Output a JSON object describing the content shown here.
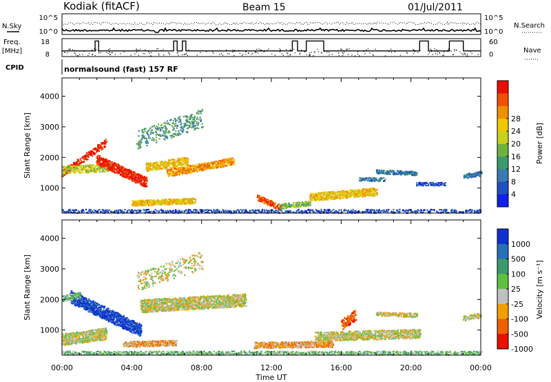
{
  "header": {
    "station": "Kodiak (fitACF)",
    "beam": "Beam 15",
    "date": "01/Jul/2011"
  },
  "left_labels": {
    "nsky": "N.Sky",
    "freq": "Freq.",
    "mhz": "[MHz]",
    "cpid": "CPID"
  },
  "right_labels": {
    "nsearch": "N.Search",
    "nave": "Nave"
  },
  "cpid_text": "normalsound (fast) 157 RF",
  "chart_data": [
    {
      "type": "line",
      "name": "noise",
      "left_ticks": [
        "10^5",
        "10^0"
      ],
      "right_ticks": [
        "10^5",
        "10^0"
      ],
      "series": [
        {
          "name": "N.Sky"
        },
        {
          "name": "N.Search"
        }
      ]
    },
    {
      "type": "line",
      "name": "freq-nave",
      "left_ticks": [
        "18",
        "8"
      ],
      "right_ticks": [
        "60",
        "0"
      ],
      "series": [
        {
          "name": "Freq.",
          "ylim": [
            8,
            18
          ],
          "x": [
            0,
            1.9,
            1.9,
            2.1,
            2.1,
            6.4,
            6.4,
            6.6,
            6.6,
            6.9,
            6.9,
            7.1,
            7.1,
            13.2,
            13.2,
            13.5,
            13.5,
            14.0,
            14.0,
            15.0,
            15.0,
            20.5,
            20.5,
            21.0,
            21.0,
            22.2,
            22.2,
            23.0,
            23.0,
            24
          ],
          "y": [
            11,
            11,
            17,
            17,
            11,
            11,
            17,
            17,
            11,
            11,
            17,
            17,
            11,
            11,
            17,
            17,
            11,
            11,
            17,
            17,
            11,
            11,
            17,
            17,
            11,
            11,
            17,
            17,
            11,
            11
          ]
        },
        {
          "name": "Nave",
          "ylim": [
            0,
            60
          ]
        }
      ]
    },
    {
      "type": "heatmap",
      "name": "power",
      "xlabel": "",
      "ylabel": "Slant Range [km]",
      "xlim": [
        0,
        24
      ],
      "ylim": [
        180,
        4600
      ],
      "yticks": [
        1000,
        2000,
        3000,
        4000
      ],
      "colorbar": {
        "label": "Power [dB]",
        "ticks": [
          "4",
          "8",
          "12",
          "16",
          "20",
          "24",
          "28"
        ],
        "colors": [
          "#1020e8",
          "#2050c0",
          "#3a7ab0",
          "#3c9a6e",
          "#70b040",
          "#c8d020",
          "#f0c800",
          "#f09000",
          "#f05000",
          "#e81000"
        ]
      },
      "features": [
        {
          "range": [
            0.0,
            2.5
          ],
          "slope": -300,
          "y_km": [
            1500,
            2500
          ],
          "width_km": 220,
          "level": 9,
          "density": 0.6
        },
        {
          "range": [
            0.0,
            3.0
          ],
          "slope": -160,
          "y_km": [
            1600,
            1700
          ],
          "width_km": 260,
          "level": 5,
          "density": 0.55
        },
        {
          "range": [
            2.0,
            4.8
          ],
          "slope": -300,
          "y_km": [
            1950,
            1200
          ],
          "width_km": 320,
          "level": 9,
          "density": 0.8
        },
        {
          "range": [
            4.8,
            7.2
          ],
          "slope": 0,
          "y_km": [
            1700,
            1900
          ],
          "width_km": 280,
          "level": 6,
          "density": 0.5
        },
        {
          "range": [
            6.0,
            9.8
          ],
          "slope": 0,
          "y_km": [
            1500,
            1900
          ],
          "width_km": 240,
          "level": 7,
          "density": 0.7
        },
        {
          "range": [
            4.0,
            7.6
          ],
          "slope": 0,
          "y_km": [
            520,
            600
          ],
          "width_km": 180,
          "level": 6,
          "density": 0.8
        },
        {
          "range": [
            11.2,
            12.5
          ],
          "slope": 0,
          "y_km": [
            700,
            380
          ],
          "width_km": 180,
          "level": 8,
          "density": 0.8
        },
        {
          "range": [
            12.5,
            14.2
          ],
          "slope": 0,
          "y_km": [
            420,
            520
          ],
          "width_km": 160,
          "level": 4,
          "density": 0.55
        },
        {
          "range": [
            14.2,
            18.0
          ],
          "slope": 0,
          "y_km": [
            720,
            900
          ],
          "width_km": 260,
          "level": 6,
          "density": 0.75
        },
        {
          "range": [
            18.0,
            20.3
          ],
          "slope": 0,
          "y_km": [
            1550,
            1500
          ],
          "width_km": 130,
          "level": 2,
          "density": 0.7
        },
        {
          "range": [
            17.0,
            18.5
          ],
          "slope": 0,
          "y_km": [
            1300,
            1300
          ],
          "width_km": 120,
          "level": 2,
          "density": 0.6
        },
        {
          "range": [
            20.3,
            21.9
          ],
          "slope": 0,
          "y_km": [
            1150,
            1150
          ],
          "width_km": 110,
          "level": 1,
          "density": 0.65
        },
        {
          "range": [
            23.0,
            24.0
          ],
          "slope": 0,
          "y_km": [
            1400,
            1500
          ],
          "width_km": 150,
          "level": 2,
          "density": 0.7
        },
        {
          "range": [
            4.3,
            8.0
          ],
          "slope": 0,
          "y_km": [
            2600,
            3300
          ],
          "width_km": 600,
          "level": 3,
          "density": 0.18
        },
        {
          "range": [
            0.0,
            24.0
          ],
          "slope": 0,
          "y_km": [
            260,
            260
          ],
          "width_km": 120,
          "level": 1,
          "density": 0.35
        }
      ]
    },
    {
      "type": "heatmap",
      "name": "velocity",
      "xlabel": "Time UT",
      "ylabel": "Slant Range [km]",
      "xlim": [
        0,
        24
      ],
      "ylim": [
        180,
        4600
      ],
      "yticks": [
        1000,
        2000,
        3000,
        4000
      ],
      "xticks": [
        "00:00",
        "04:00",
        "08:00",
        "12:00",
        "16:00",
        "20:00",
        "00:00"
      ],
      "colorbar": {
        "label": "Velocity [m s⁻¹]",
        "ticks": [
          "1000",
          "500",
          "100",
          "25",
          "-25",
          "-100",
          "-500",
          "-1000"
        ],
        "colors": [
          "#1030d0",
          "#2870b8",
          "#3c9a6e",
          "#60c040",
          "#c0c0c0",
          "#f0a000",
          "#f06000",
          "#e81000"
        ]
      },
      "features": [
        {
          "range": [
            0.5,
            4.5
          ],
          "slope": 0,
          "y_km": [
            2100,
            1000
          ],
          "width_km": 420,
          "level": 0,
          "density": 0.75
        },
        {
          "range": [
            0.0,
            1.0
          ],
          "slope": 0,
          "y_km": [
            2050,
            2150
          ],
          "width_km": 200,
          "level": 3,
          "density": 0.6
        },
        {
          "range": [
            0.0,
            2.5
          ],
          "slope": 0,
          "y_km": [
            700,
            900
          ],
          "width_km": 380,
          "level": 4,
          "density": 0.7
        },
        {
          "range": [
            3.5,
            6.5
          ],
          "slope": 0,
          "y_km": [
            550,
            600
          ],
          "width_km": 180,
          "level": 5,
          "density": 0.8
        },
        {
          "range": [
            4.5,
            10.5
          ],
          "slope": 0,
          "y_km": [
            1800,
            2000
          ],
          "width_km": 420,
          "level": 4,
          "density": 0.7
        },
        {
          "range": [
            11.0,
            15.5
          ],
          "slope": 0,
          "y_km": [
            520,
            560
          ],
          "width_km": 200,
          "level": 5,
          "density": 0.75
        },
        {
          "range": [
            14.5,
            20.5
          ],
          "slope": 0,
          "y_km": [
            800,
            900
          ],
          "width_km": 300,
          "level": 4,
          "density": 0.55
        },
        {
          "range": [
            16.0,
            16.8
          ],
          "slope": 0,
          "y_km": [
            1200,
            1500
          ],
          "width_km": 350,
          "level": 6,
          "density": 0.6
        },
        {
          "range": [
            18.0,
            20.3
          ],
          "slope": 0,
          "y_km": [
            1550,
            1500
          ],
          "width_km": 130,
          "level": 4,
          "density": 0.6
        },
        {
          "range": [
            23.0,
            24.0
          ],
          "slope": 0,
          "y_km": [
            1400,
            1500
          ],
          "width_km": 150,
          "level": 4,
          "density": 0.6
        },
        {
          "range": [
            4.3,
            8.0
          ],
          "slope": 0,
          "y_km": [
            2600,
            3300
          ],
          "width_km": 600,
          "level": 4,
          "density": 0.16
        },
        {
          "range": [
            0.0,
            24.0
          ],
          "slope": 0,
          "y_km": [
            270,
            270
          ],
          "width_km": 120,
          "level": 3,
          "density": 0.5
        }
      ]
    }
  ]
}
